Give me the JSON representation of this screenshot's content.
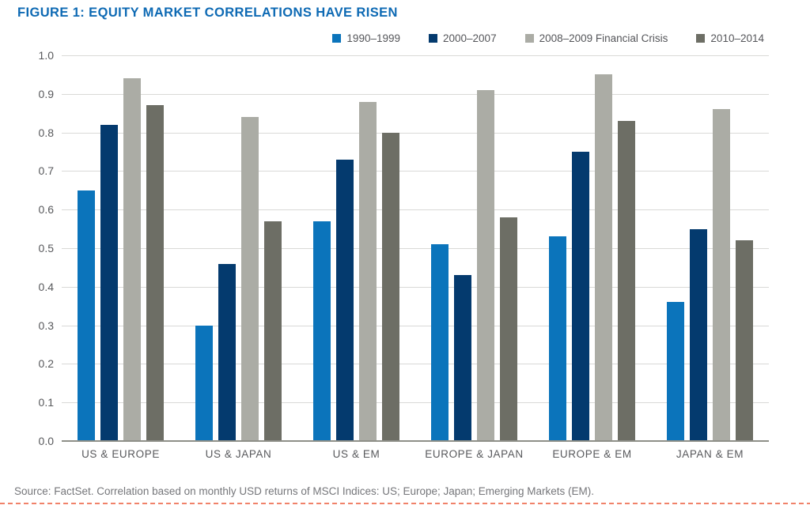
{
  "figure": {
    "title": "FIGURE 1: EQUITY MARKET CORRELATIONS HAVE RISEN",
    "source": "Source: FactSet. Correlation based on monthly USD returns of MSCI Indices: US; Europe; Japan; Emerging Markets (EM)."
  },
  "colors": {
    "title_blue": "#0e6ab4",
    "gridline": "#d9d9d7",
    "axis_line": "#8e8f88",
    "axis_text": "#58595c",
    "legend_text": "#55565a",
    "source_text": "#75767a",
    "divider_orange": "#f0826a"
  },
  "chart_data": {
    "type": "bar",
    "title": "FIGURE 1: EQUITY MARKET CORRELATIONS HAVE RISEN",
    "categories": [
      "US & EUROPE",
      "US & JAPAN",
      "US & EM",
      "EUROPE & JAPAN",
      "EUROPE & EM",
      "JAPAN & EM"
    ],
    "series": [
      {
        "name": "1990–1999",
        "color": "#0b74bb",
        "values": [
          0.65,
          0.3,
          0.57,
          0.51,
          0.53,
          0.36
        ]
      },
      {
        "name": "2000–2007",
        "color": "#043a6e",
        "values": [
          0.82,
          0.46,
          0.73,
          0.43,
          0.75,
          0.55
        ]
      },
      {
        "name": "2008–2009 Financial Crisis",
        "color": "#abaca5",
        "values": [
          0.94,
          0.84,
          0.88,
          0.91,
          0.95,
          0.86
        ]
      },
      {
        "name": "2010–2014",
        "color": "#6d6e65",
        "values": [
          0.87,
          0.57,
          0.8,
          0.58,
          0.83,
          0.52
        ]
      }
    ],
    "xlabel": "",
    "ylabel": "",
    "ylim": [
      0.0,
      1.0
    ],
    "ytick_step": 0.1,
    "yticks": [
      "1.0",
      "0.9",
      "0.8",
      "0.7",
      "0.6",
      "0.5",
      "0.4",
      "0.3",
      "0.2",
      "0.1",
      "0.0"
    ],
    "grid": true,
    "legend_position": "top-right"
  }
}
